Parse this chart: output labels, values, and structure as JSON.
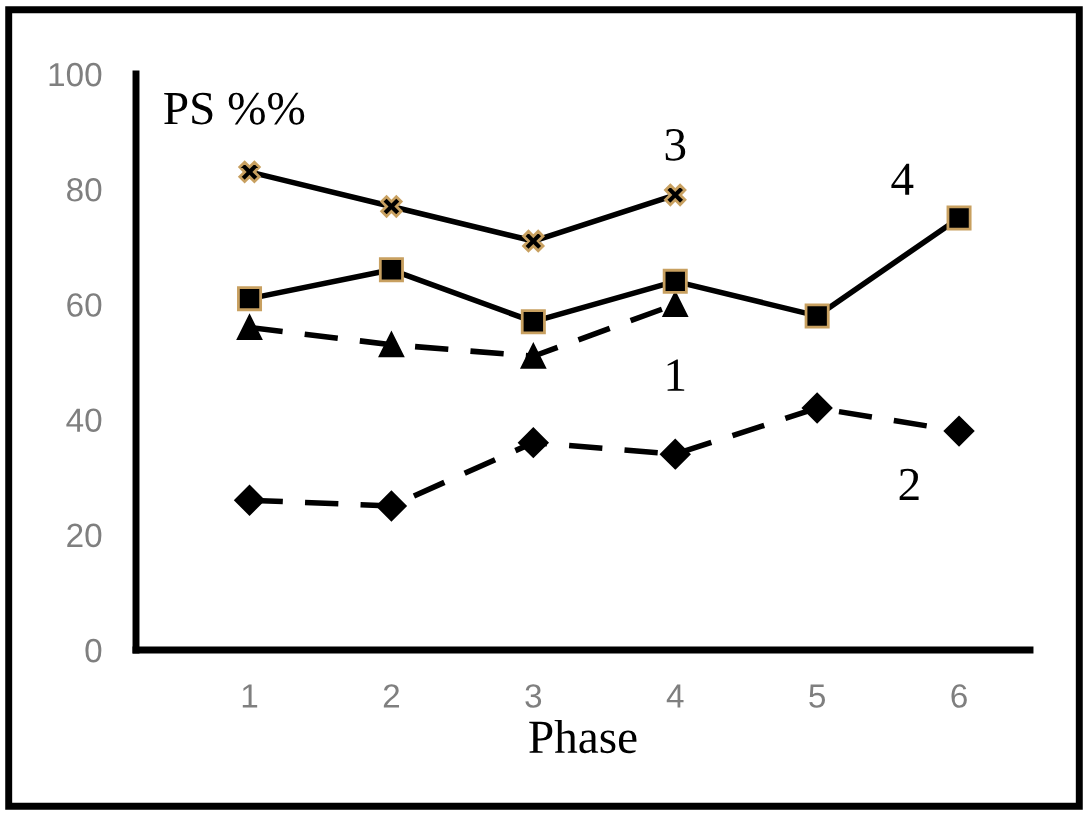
{
  "chart_data": {
    "type": "line",
    "ylabel": "PS %%",
    "xlabel": "Phase",
    "categories": [
      "1",
      "2",
      "3",
      "4",
      "5",
      "6"
    ],
    "series": [
      {
        "name": "1",
        "color": "#000000",
        "marker": "triangle",
        "line_style": "dashed",
        "values": [
          56,
          53,
          51,
          60,
          null,
          null
        ]
      },
      {
        "name": "2",
        "color": "#000000",
        "marker": "diamond",
        "line_style": "dashed",
        "values": [
          26,
          25,
          36,
          34,
          42,
          38
        ]
      },
      {
        "name": "3",
        "color": "#000000",
        "marker": "cross",
        "line_style": "solid",
        "values": [
          83,
          77,
          71,
          79,
          null,
          null
        ]
      },
      {
        "name": "4",
        "color": "#000000",
        "marker": "square",
        "line_style": "solid",
        "values": [
          61,
          66,
          57,
          64,
          58,
          75
        ]
      }
    ],
    "ylim": [
      0,
      100
    ],
    "yticks": [
      0,
      20,
      40,
      60,
      80,
      100
    ],
    "grid": false,
    "legend": false
  }
}
